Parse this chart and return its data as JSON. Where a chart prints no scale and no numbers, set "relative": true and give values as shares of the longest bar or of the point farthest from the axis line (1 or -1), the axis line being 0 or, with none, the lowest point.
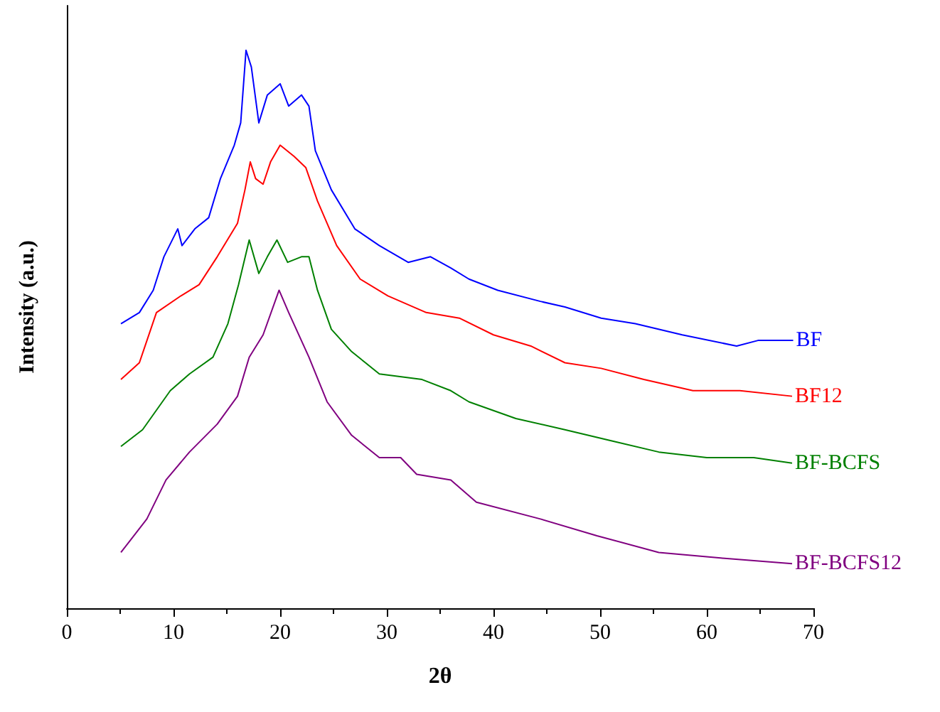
{
  "chart_data": {
    "type": "line",
    "xlabel": "2θ",
    "ylabel": "Intensity (a.u.)",
    "relative": true,
    "xlim": [
      0,
      70
    ],
    "xticks": [
      0,
      10,
      20,
      30,
      40,
      50,
      60,
      70
    ],
    "grid": false,
    "legend": false,
    "series": [
      {
        "name": "BF",
        "color": "#0000ff",
        "x": [
          5.07,
          6.8,
          8.1,
          9.1,
          10.4,
          10.8,
          12,
          13.3,
          14.4,
          15.7,
          16.3,
          16.8,
          17.3,
          18,
          18.8,
          20,
          20.8,
          22,
          22.7,
          23.3,
          24.8,
          27,
          29.3,
          32,
          34.1,
          36,
          37.7,
          40.4,
          44.4,
          46.7,
          50.1,
          53.3,
          57.7,
          62.8,
          64.8,
          68.1
        ],
        "values": [
          0.51,
          0.53,
          0.57,
          0.63,
          0.68,
          0.65,
          0.68,
          0.7,
          0.77,
          0.83,
          0.87,
          1,
          0.97,
          0.87,
          0.92,
          0.94,
          0.9,
          0.92,
          0.9,
          0.82,
          0.75,
          0.68,
          0.65,
          0.62,
          0.63,
          0.61,
          0.59,
          0.57,
          0.55,
          0.54,
          0.52,
          0.51,
          0.49,
          0.47,
          0.48,
          0.48
        ]
      },
      {
        "name": "BF12",
        "color": "#ff0000",
        "x": [
          5.07,
          6.8,
          8.4,
          10.7,
          12.4,
          14.1,
          16,
          16.7,
          17.2,
          17.7,
          18.4,
          19.1,
          20,
          21.3,
          22.4,
          23.5,
          25.3,
          27.5,
          30.1,
          33.7,
          36.8,
          40,
          43.5,
          46.7,
          50.1,
          54.1,
          58.7,
          63.1,
          68
        ],
        "values": [
          0.41,
          0.44,
          0.53,
          0.56,
          0.58,
          0.63,
          0.69,
          0.75,
          0.8,
          0.77,
          0.76,
          0.8,
          0.83,
          0.81,
          0.79,
          0.73,
          0.65,
          0.59,
          0.56,
          0.53,
          0.52,
          0.49,
          0.47,
          0.44,
          0.43,
          0.41,
          0.39,
          0.39,
          0.38
        ]
      },
      {
        "name": "BF-BCFS",
        "color": "#008000",
        "x": [
          5.07,
          7.1,
          9.7,
          11.5,
          13.7,
          15.1,
          16.1,
          17.1,
          18,
          18.8,
          19.7,
          20.7,
          22,
          22.7,
          23.5,
          24.8,
          26.7,
          29.3,
          33.3,
          36,
          37.7,
          42.1,
          46.7,
          51.1,
          55.5,
          60,
          64.4,
          68
        ],
        "values": [
          0.29,
          0.32,
          0.39,
          0.42,
          0.45,
          0.51,
          0.58,
          0.66,
          0.6,
          0.63,
          0.66,
          0.62,
          0.63,
          0.63,
          0.57,
          0.5,
          0.46,
          0.42,
          0.41,
          0.39,
          0.37,
          0.34,
          0.32,
          0.3,
          0.28,
          0.27,
          0.27,
          0.26
        ]
      },
      {
        "name": "BF-BCFS12",
        "color": "#800080",
        "x": [
          5.07,
          7.5,
          9.3,
          11.5,
          14.1,
          16,
          17.1,
          18.4,
          19.9,
          20.8,
          22.7,
          24.4,
          26.7,
          29.3,
          31.3,
          32.8,
          36,
          38.4,
          44.4,
          49.7,
          55.5,
          61.3,
          68
        ],
        "values": [
          0.1,
          0.16,
          0.23,
          0.28,
          0.33,
          0.38,
          0.45,
          0.49,
          0.57,
          0.53,
          0.45,
          0.37,
          0.31,
          0.27,
          0.27,
          0.24,
          0.23,
          0.19,
          0.16,
          0.13,
          0.1,
          0.09,
          0.08
        ]
      }
    ]
  }
}
